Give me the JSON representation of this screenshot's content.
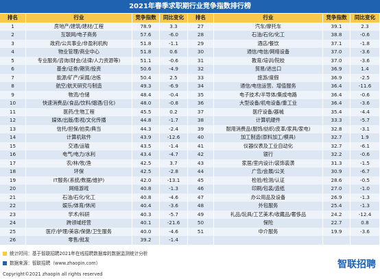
{
  "title": "2021年春季求职期行业竞争指数排行榜",
  "table": {
    "header": [
      "排名",
      "行业",
      "竞争指数",
      "同比变化",
      "排名",
      "行业",
      "竞争指数",
      "同比变化"
    ],
    "left_rows": [
      [
        "1",
        "房地产/建筑/建材/工程",
        "78.9",
        "3.3"
      ],
      [
        "2",
        "互联网/电子商务",
        "57.6",
        "-6.0"
      ],
      [
        "3",
        "政府/公共事业/非盈利机构",
        "51.8",
        "-1.1"
      ],
      [
        "4",
        "物业管理/商业中心",
        "51.8",
        "0.6"
      ],
      [
        "5",
        "专业服务/咨询(财会/法律/人力资源等)",
        "51.1",
        "-0.6"
      ],
      [
        "6",
        "基金/证券/期货/投资",
        "50.6",
        "-4.9"
      ],
      [
        "7",
        "能源/矿产/采掘/冶炼",
        "50.4",
        "2.5"
      ],
      [
        "8",
        "航空/航天研究与制造",
        "49.3",
        "-6.9"
      ],
      [
        "9",
        "物流/仓储",
        "48.4",
        "-0.4"
      ],
      [
        "10",
        "快速消费品(食品/饮料/烟酒/日化)",
        "48.0",
        "-0.8"
      ],
      [
        "11",
        "医药/生物工程",
        "45.5",
        "0.2"
      ],
      [
        "12",
        "媒体/出版/影视/文化传播",
        "44.8",
        "-1.7"
      ],
      [
        "13",
        "信托/担保/拍卖/典当",
        "44.3",
        "-2.4"
      ],
      [
        "14",
        "计算机软件",
        "43.9",
        "-12.6"
      ],
      [
        "15",
        "交通/运输",
        "43.5",
        "-1.4"
      ],
      [
        "16",
        "电气/电力/水利",
        "43.4",
        "-4.7"
      ],
      [
        "17",
        "农/林/牧/渔",
        "42.5",
        "3.7"
      ],
      [
        "18",
        "环保",
        "42.5",
        "-2.8"
      ],
      [
        "19",
        "IT服务(系统/数据/维护)",
        "42.0",
        "-13.1"
      ],
      [
        "20",
        "网络游戏",
        "40.8",
        "-1.3"
      ],
      [
        "21",
        "石油/石化/化工",
        "40.8",
        "-4.6"
      ],
      [
        "22",
        "娱乐/体育/休闲",
        "40.4",
        "-3.6"
      ],
      [
        "23",
        "学术/科研",
        "40.3",
        "-5.7"
      ],
      [
        "24",
        "跨领域经营",
        "40.1",
        "-21.6"
      ],
      [
        "25",
        "医疗/护理/美容/保健/卫生服务",
        "40.0",
        "-4.6"
      ],
      [
        "26",
        "零售/批发",
        "39.2",
        "-1.4"
      ]
    ],
    "right_rows": [
      [
        "27",
        "汽车/摩托车",
        "39.1",
        "2.3"
      ],
      [
        "28",
        "石油/石化/化工",
        "38.8",
        "-0.6"
      ],
      [
        "29",
        "酒店/餐饮",
        "37.1",
        "-1.8"
      ],
      [
        "30",
        "通信/电信/网络设备",
        "37.0",
        "-3.6"
      ],
      [
        "31",
        "教育/培训/院校",
        "37.0",
        "-3.6"
      ],
      [
        "32",
        "贸易/进出口",
        "36.9",
        "1.4"
      ],
      [
        "33",
        "旅游/度假",
        "36.9",
        "-2.5"
      ],
      [
        "34",
        "通信/电信运营、增值服务",
        "36.4",
        "-11.6"
      ],
      [
        "35",
        "电子技术/半导体/集成电路",
        "36.4",
        "-0.6"
      ],
      [
        "36",
        "大型设备/机电设备/重工业",
        "36.4",
        "-3.6"
      ],
      [
        "37",
        "医疗设备/器械",
        "35.4",
        "-4.4"
      ],
      [
        "38",
        "计算机硬件",
        "33.3",
        "-5.7"
      ],
      [
        "39",
        "耐用消费品(服饰/纺织/皮革/家具/家电)",
        "32.8",
        "-3.1"
      ],
      [
        "40",
        "加工制造(原料加工/模具)",
        "32.7",
        "1.9"
      ],
      [
        "41",
        "仪器仪表及工业自动化",
        "32.7",
        "-6.1"
      ],
      [
        "42",
        "银行",
        "32.2",
        "-0.6"
      ],
      [
        "43",
        "家居/室内设计/装饰装潢",
        "31.3",
        "-1.5"
      ],
      [
        "44",
        "广告/会展/公关",
        "30.9",
        "-6.7"
      ],
      [
        "45",
        "检验/检测/认证",
        "28.6",
        "-0.5"
      ],
      [
        "46",
        "印刷/包装/造纸",
        "27.0",
        "-1.0"
      ],
      [
        "47",
        "办公用品及设备",
        "26.9",
        "-1.3"
      ],
      [
        "48",
        "外包服务",
        "25.4",
        "-1.3"
      ],
      [
        "49",
        "礼品/玩具/工艺美术/收藏品/奢侈品",
        "24.2",
        "-12.4"
      ],
      [
        "50",
        "保险",
        "22.7",
        "0.8"
      ],
      [
        "51",
        "中介服务",
        "19.9",
        "-3.6"
      ]
    ]
  },
  "footer": {
    "note": "统计时间：基于智联招聘2021年在线招聘数据库的数据监测统计分析",
    "source": "数据来源：智联招聘（www.zhaopin.com）",
    "copyright": "Copyright©2021 zhaopin all rights reserved",
    "logo": "智联招聘"
  }
}
